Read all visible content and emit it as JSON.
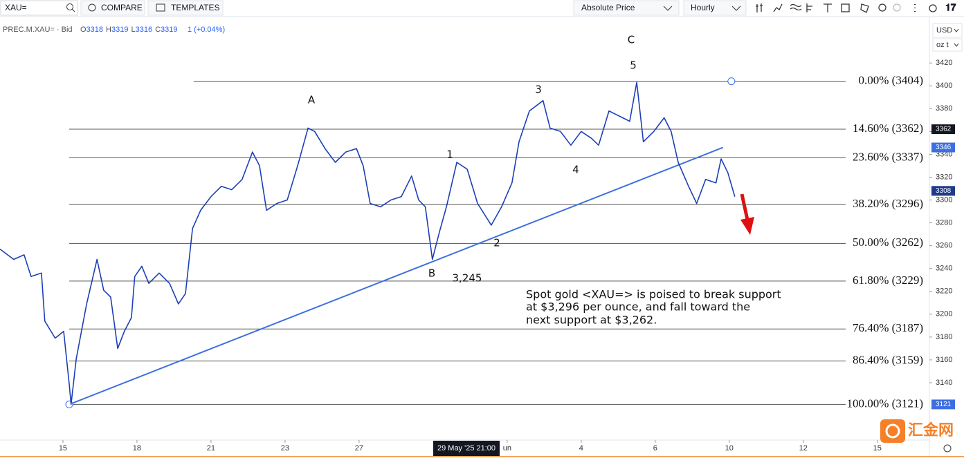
{
  "toolbar": {
    "search": "XAU=",
    "compare": "COMPARE",
    "templates": "TEMPLATES",
    "price_mode": "Absolute Price",
    "interval": "Hourly"
  },
  "legend": {
    "symbol": "PREC.M.XAU= · Bid",
    "ohlc": [
      {
        "label": "O",
        "value": 3318
      },
      {
        "label": "H",
        "value": 3319
      },
      {
        "label": "L",
        "value": 3316
      },
      {
        "label": "C",
        "value": 3319
      }
    ],
    "change": "1 (+0.04%)"
  },
  "axis_header": {
    "currency": "USD",
    "unit": "oz t"
  },
  "watermark": "汇金网",
  "chart_data": {
    "type": "line",
    "x": [
      -1.7,
      -1.33,
      -1.05,
      -0.86,
      -0.58,
      -0.49,
      -0.21,
      0.02,
      0.17,
      0.22,
      0.36,
      0.64,
      0.92,
      1.1,
      1.29,
      1.48,
      1.66,
      1.85,
      1.94,
      2.13,
      2.32,
      2.6,
      2.88,
      3.12,
      3.31,
      3.5,
      3.72,
      4.0,
      4.28,
      4.56,
      4.84,
      5.12,
      5.31,
      5.5,
      5.78,
      6.06,
      6.34,
      6.62,
      6.8,
      7.08,
      7.36,
      7.64,
      7.93,
      8.11,
      8.3,
      8.58,
      8.86,
      9.14,
      9.42,
      9.61,
      9.79,
      9.98,
      10.17,
      10.36,
      10.64,
      10.92,
      11.2,
      11.57,
      11.85,
      12.13,
      12.32,
      12.6,
      12.97,
      13.16,
      13.44,
      13.72,
      14.0,
      14.28,
      14.47,
      14.75,
      15.12,
      15.31,
      15.5,
      15.68,
      15.96,
      16.24,
      16.43,
      16.62,
      16.9,
      17.12,
      17.36,
      17.64,
      17.78,
      17.96,
      18.15
    ],
    "series": [
      {
        "name": "PREC.M.XAU=",
        "color": "#1c3fb7",
        "values": [
          3257,
          3248,
          3252,
          3233,
          3236,
          3194,
          3179,
          3185,
          3139,
          3121,
          3161,
          3209,
          3248,
          3221,
          3215,
          3170,
          3185,
          3197,
          3233,
          3242,
          3227,
          3236,
          3227,
          3209,
          3218,
          3275,
          3291,
          3303,
          3312,
          3309,
          3318,
          3342,
          3330,
          3291,
          3297,
          3300,
          3330,
          3363,
          3360,
          3345,
          3333,
          3342,
          3345,
          3330,
          3297,
          3294,
          3300,
          3303,
          3321,
          3300,
          3294,
          3248,
          3272,
          3294,
          3333,
          3327,
          3297,
          3278,
          3294,
          3315,
          3351,
          3378,
          3387,
          3363,
          3360,
          3348,
          3360,
          3354,
          3348,
          3378,
          3372,
          3369,
          3403,
          3351,
          3360,
          3372,
          3360,
          3333,
          3312,
          3297,
          3318,
          3315,
          3336,
          3324,
          3303
        ]
      }
    ],
    "xlim": [
      -1.7,
      23.35
    ],
    "xticks": [
      {
        "value": 0,
        "label": "15"
      },
      {
        "value": 2,
        "label": "18"
      },
      {
        "value": 4,
        "label": "21"
      },
      {
        "value": 6,
        "label": "23"
      },
      {
        "value": 8,
        "label": "27"
      },
      {
        "value": 12,
        "label": "un"
      },
      {
        "value": 14,
        "label": "4"
      },
      {
        "value": 16,
        "label": "6"
      },
      {
        "value": 18,
        "label": "10"
      },
      {
        "value": 20,
        "label": "12"
      },
      {
        "value": 22,
        "label": "15"
      }
    ],
    "crosshair": {
      "x": 10.9,
      "label": "29 May '25 21:00"
    },
    "ylim": [
      3091,
      3457
    ],
    "yticks": [
      3140,
      3160,
      3180,
      3200,
      3220,
      3240,
      3260,
      3280,
      3300,
      3320,
      3340,
      3360,
      3380,
      3400,
      3420
    ],
    "grid": false,
    "fib_levels": [
      {
        "label": "0.00% (3404)",
        "value": 3404,
        "start": 3.53
      },
      {
        "label": "14.60% (3362)",
        "value": 3362,
        "start": 0.17
      },
      {
        "label": "23.60% (3337)",
        "value": 3337,
        "start": 0.17
      },
      {
        "label": "38.20% (3296)",
        "value": 3296,
        "start": 0.17
      },
      {
        "label": "50.00% (3262)",
        "value": 3262,
        "start": 0.17
      },
      {
        "label": "61.80% (3229)",
        "value": 3229,
        "start": 0.17
      },
      {
        "label": "76.40% (3187)",
        "value": 3187,
        "start": 0.17
      },
      {
        "label": "86.40% (3159)",
        "value": 3159,
        "start": 0.17
      },
      {
        "label": "100.00% (3121)",
        "value": 3121,
        "start": 0.17
      }
    ],
    "trendline": {
      "color": "#3d6fe0",
      "x": [
        0.17,
        17.83
      ],
      "values": [
        3121,
        3346
      ]
    },
    "axis_badges": [
      {
        "value": 3362,
        "color": "#131722"
      },
      {
        "value": 3346,
        "color": "#3d6fe0"
      },
      {
        "value": 3308,
        "color": "#1e3a8a"
      },
      {
        "value": 3121,
        "color": "#3d6fe0"
      }
    ],
    "wave_labels": [
      "A",
      "B",
      "C",
      "1",
      "2",
      "3",
      "4",
      "5",
      "3,245"
    ],
    "annotation": [
      "Spot gold <XAU=> is poised to break support",
      "at $3,296 per ounce, and fall toward the",
      "next support at $3,262."
    ]
  }
}
